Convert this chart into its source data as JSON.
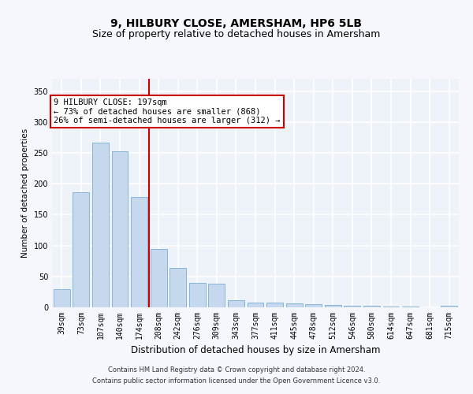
{
  "title": "9, HILBURY CLOSE, AMERSHAM, HP6 5LB",
  "subtitle": "Size of property relative to detached houses in Amersham",
  "xlabel": "Distribution of detached houses by size in Amersham",
  "ylabel": "Number of detached properties",
  "categories": [
    "39sqm",
    "73sqm",
    "107sqm",
    "140sqm",
    "174sqm",
    "208sqm",
    "242sqm",
    "276sqm",
    "309sqm",
    "343sqm",
    "377sqm",
    "411sqm",
    "445sqm",
    "478sqm",
    "512sqm",
    "546sqm",
    "580sqm",
    "614sqm",
    "647sqm",
    "681sqm",
    "715sqm"
  ],
  "values": [
    29,
    186,
    267,
    252,
    178,
    94,
    64,
    39,
    38,
    11,
    8,
    8,
    6,
    5,
    4,
    3,
    3,
    1,
    1,
    0,
    2
  ],
  "bar_color": "#c5d8ed",
  "bar_edgecolor": "#7aaed4",
  "vline_color": "#cc0000",
  "annotation_text": "9 HILBURY CLOSE: 197sqm\n← 73% of detached houses are smaller (868)\n26% of semi-detached houses are larger (312) →",
  "annotation_box_color": "#cc0000",
  "ylim": [
    0,
    370
  ],
  "yticks": [
    0,
    50,
    100,
    150,
    200,
    250,
    300,
    350
  ],
  "footer_line1": "Contains HM Land Registry data © Crown copyright and database right 2024.",
  "footer_line2": "Contains public sector information licensed under the Open Government Licence v3.0.",
  "background_color": "#eef2f9",
  "grid_color": "#ffffff",
  "title_fontsize": 10,
  "subtitle_fontsize": 9,
  "xlabel_fontsize": 8.5,
  "ylabel_fontsize": 7.5,
  "tick_fontsize": 7,
  "annotation_fontsize": 7.5,
  "footer_fontsize": 6
}
